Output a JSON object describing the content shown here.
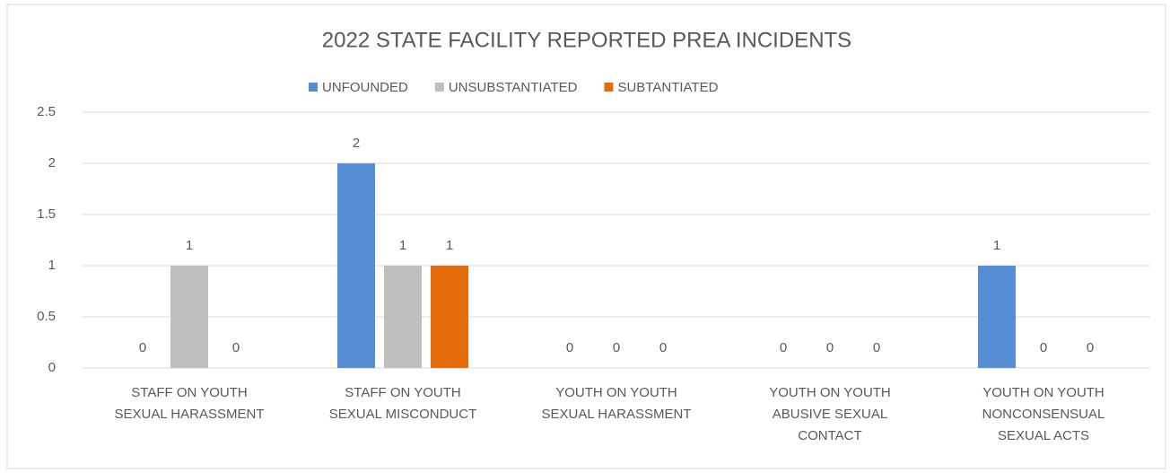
{
  "chart_data": {
    "type": "bar",
    "title": "2022 STATE FACILITY REPORTED PREA INCIDENTS",
    "categories": [
      [
        "STAFF ON YOUTH",
        "SEXUAL HARASSMENT"
      ],
      [
        "STAFF ON YOUTH",
        "SEXUAL MISCONDUCT"
      ],
      [
        "YOUTH ON YOUTH",
        "SEXUAL HARASSMENT"
      ],
      [
        "YOUTH ON YOUTH",
        "ABUSIVE SEXUAL",
        "CONTACT"
      ],
      [
        "YOUTH ON YOUTH",
        "NONCONSENSUAL",
        "SEXUAL ACTS"
      ]
    ],
    "series": [
      {
        "name": "UNFOUNDED",
        "color": "#558ed5",
        "values": [
          0,
          2,
          0,
          0,
          1
        ]
      },
      {
        "name": "UNSUBSTANTIATED",
        "color": "#bfbfbf",
        "values": [
          1,
          1,
          0,
          0,
          0
        ]
      },
      {
        "name": "SUBTANTIATED",
        "color": "#e46c0a",
        "values": [
          0,
          1,
          0,
          0,
          0
        ]
      }
    ],
    "ylim": [
      0,
      2.5
    ],
    "yticks": [
      0,
      0.5,
      1,
      1.5,
      2,
      2.5
    ],
    "grid": true,
    "legend": "top"
  }
}
